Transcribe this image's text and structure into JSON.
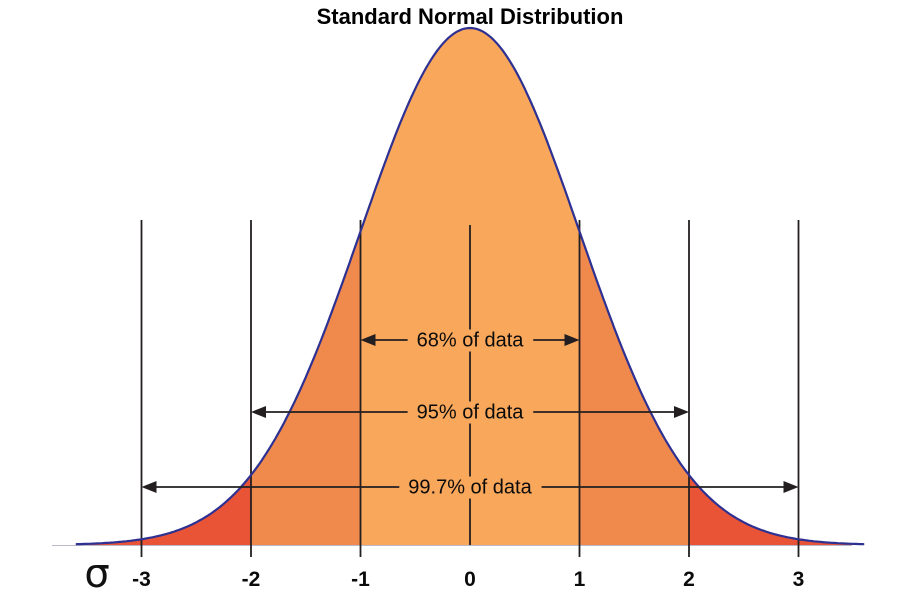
{
  "chart_data": {
    "type": "area",
    "title": "Standard Normal Distribution",
    "xlabel": "σ",
    "x_ticks": [
      -3,
      -2,
      -1,
      0,
      1,
      2,
      3
    ],
    "x_tick_labels": [
      "-3",
      "-2",
      "-1",
      "0",
      "1",
      "2",
      "3"
    ],
    "distribution": {
      "mean": 0,
      "std_dev": 1
    },
    "grid": false,
    "shaded_regions": [
      {
        "name": "tails-beyond-2-sigma",
        "from_sigma": -3.6,
        "to_sigma": 3.6,
        "color": "#E95336"
      },
      {
        "name": "within-2-sigma",
        "from_sigma": -2,
        "to_sigma": 2,
        "color": "#EF8A4C"
      },
      {
        "name": "within-1-sigma",
        "from_sigma": -1,
        "to_sigma": 1,
        "color": "#F9A75B"
      }
    ],
    "annotations": [
      {
        "label": "68% of data",
        "value_pct": 68,
        "from_sigma": -1,
        "to_sigma": 1
      },
      {
        "label": "95% of data",
        "value_pct": 95,
        "from_sigma": -2,
        "to_sigma": 2
      },
      {
        "label": "99.7% of data",
        "value_pct": 99.7,
        "from_sigma": -3,
        "to_sigma": 3
      }
    ],
    "colors": {
      "outline": "#2E3192",
      "line": "#231F20",
      "text": "#0B0B0B",
      "label_bg": "#F9A75B",
      "center_fill": "#F9A75B",
      "band_fill": "#EF8A4C",
      "tail_fill": "#E95336",
      "background": "#FFFFFF"
    }
  }
}
